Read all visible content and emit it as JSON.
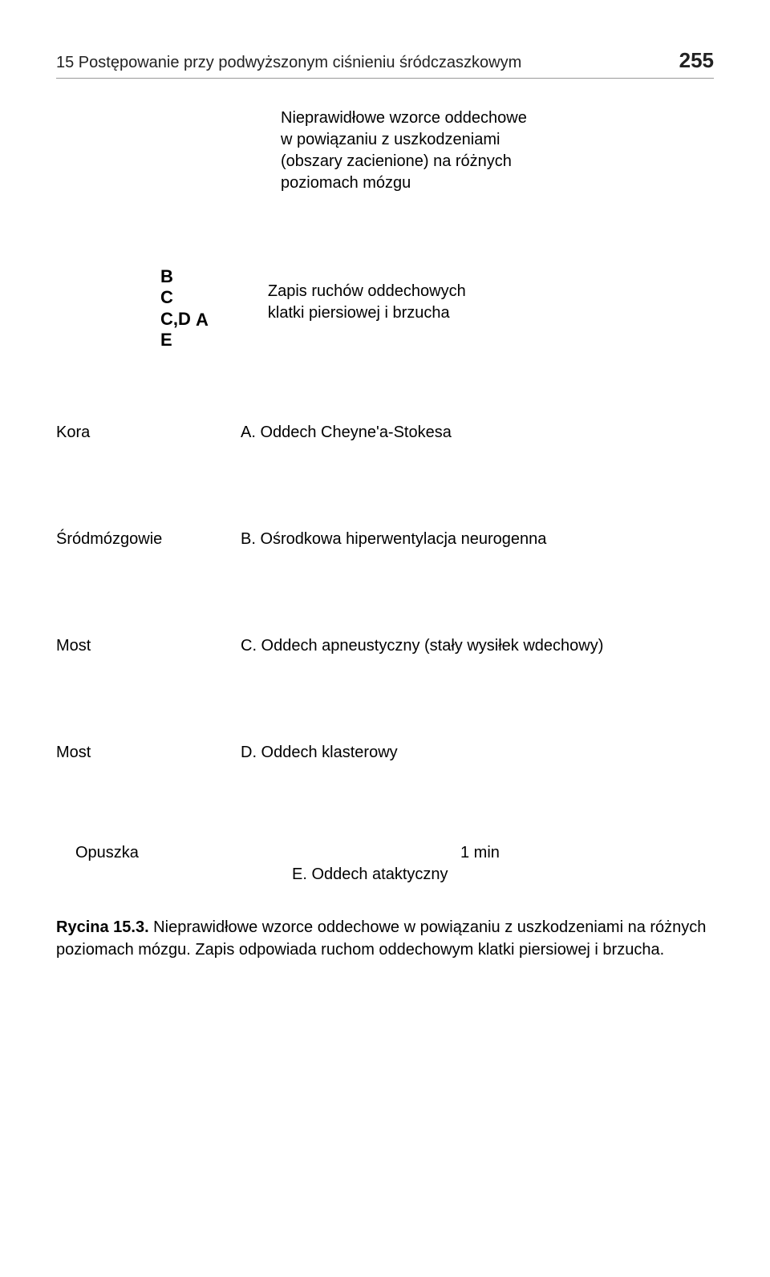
{
  "header": {
    "chapter_title": "15 Postępowanie przy podwyższonym ciśnieniu śródczaszkowym",
    "page_number": "255"
  },
  "figure_title": {
    "line1": "Nieprawidłowe wzorce oddechowe",
    "line2": "w powiązaniu z uszkodzeniami",
    "line3": "(obszary zacienione) na różnych",
    "line4": "poziomach mózgu"
  },
  "letters": {
    "b": "B",
    "c": "C",
    "cd": "C,D",
    "a": "A",
    "e": "E"
  },
  "recording_label": {
    "line1": "Zapis ruchów oddechowych",
    "line2": "klatki piersiowej i brzucha"
  },
  "rows": [
    {
      "label": "Kora",
      "desc": "A. Oddech Cheyne'a-Stokesa"
    },
    {
      "label": "Śródmózgowie",
      "desc": "B. Ośrodkowa hiperwentylacja neurogenna"
    },
    {
      "label": "Most",
      "desc": "C. Oddech apneustyczny (stały wysiłek wdechowy)"
    },
    {
      "label": "Most",
      "desc": "D. Oddech klasterowy"
    }
  ],
  "last_row": {
    "label": "Opuszka",
    "one_min": "1 min",
    "desc": "E. Oddech ataktyczny"
  },
  "caption": {
    "bold": "Rycina 15.3.",
    "text": " Nieprawidłowe wzorce oddechowe w powiązaniu z uszkodzeniami na różnych poziomach mózgu. Zapis odpowiada ruchom oddechowym klatki piersiowej i brzucha."
  }
}
